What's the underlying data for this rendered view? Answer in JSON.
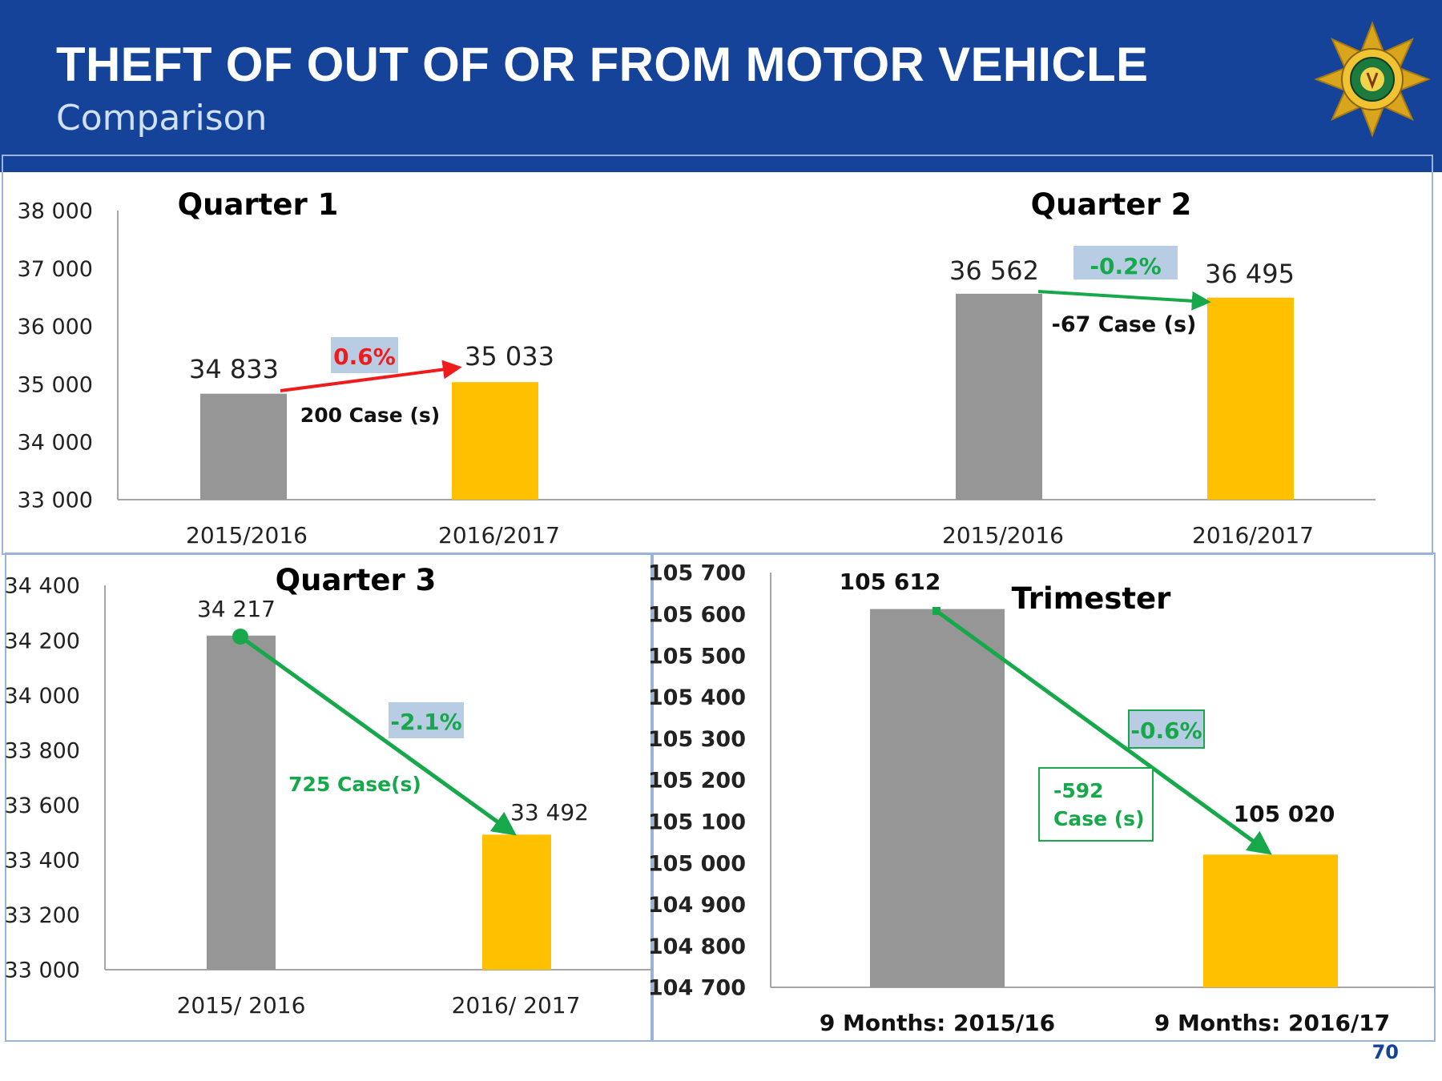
{
  "header": {
    "title": "THEFT OF OUT OF OR FROM MOTOR VEHICLE",
    "subtitle": "Comparison",
    "emblem": "police-star-badge-icon"
  },
  "page_number": "70",
  "colors": {
    "header_bg": "#15439a",
    "bar_prev": "#969696",
    "bar_curr": "#ffc000",
    "increase": "#ee1c1c",
    "decrease": "#16a84a",
    "pct_box": "#b8cce4"
  },
  "chart_data": [
    {
      "type": "bar",
      "name": "quarters-1-2",
      "y_ticks": [
        "38 000",
        "37 000",
        "36 000",
        "35 000",
        "34 000",
        "33 000"
      ],
      "ylim": [
        33000,
        38000
      ],
      "groups": [
        {
          "title": "Quarter 1",
          "categories": [
            "2015/2016",
            "2016/2017"
          ],
          "values": [
            34833,
            35033
          ],
          "value_labels": [
            "34 833",
            "35 033"
          ],
          "change_pct": "0.6%",
          "change_cases": "200  Case (s)",
          "direction": "up"
        },
        {
          "title": "Quarter 2",
          "categories": [
            "2015/2016",
            "2016/2017"
          ],
          "values": [
            36562,
            36495
          ],
          "value_labels": [
            "36 562",
            "36 495"
          ],
          "change_pct": "-0.2%",
          "change_cases": "-67  Case (s)",
          "direction": "down"
        }
      ]
    },
    {
      "type": "bar",
      "name": "quarter-3",
      "title": "Quarter 3",
      "y_ticks": [
        "34 400",
        "34 200",
        "34 000",
        "33 800",
        "33 600",
        "33 400",
        "33 200",
        "33 000"
      ],
      "ylim": [
        33000,
        34400
      ],
      "categories": [
        "2015/ 2016",
        "2016/ 2017"
      ],
      "values": [
        34217,
        33492
      ],
      "value_labels": [
        "34 217",
        "33 492"
      ],
      "change_pct": "-2.1%",
      "change_cases": "725 Case(s)",
      "direction": "down"
    },
    {
      "type": "bar",
      "name": "trimester",
      "title": "Trimester",
      "y_ticks": [
        "105 700",
        "105 600",
        "105 500",
        "105 400",
        "105 300",
        "105 200",
        "105 100",
        "105 000",
        "104 900",
        "104 800",
        "104 700"
      ],
      "ylim": [
        104700,
        105700
      ],
      "categories": [
        "9 Months: 2015/16",
        "9 Months: 2016/17"
      ],
      "values": [
        105612,
        105020
      ],
      "value_labels": [
        "105 612",
        "105 020"
      ],
      "change_pct": "-0.6%",
      "change_cases_line1": "-592",
      "change_cases_line2": "Case (s)",
      "direction": "down"
    }
  ]
}
